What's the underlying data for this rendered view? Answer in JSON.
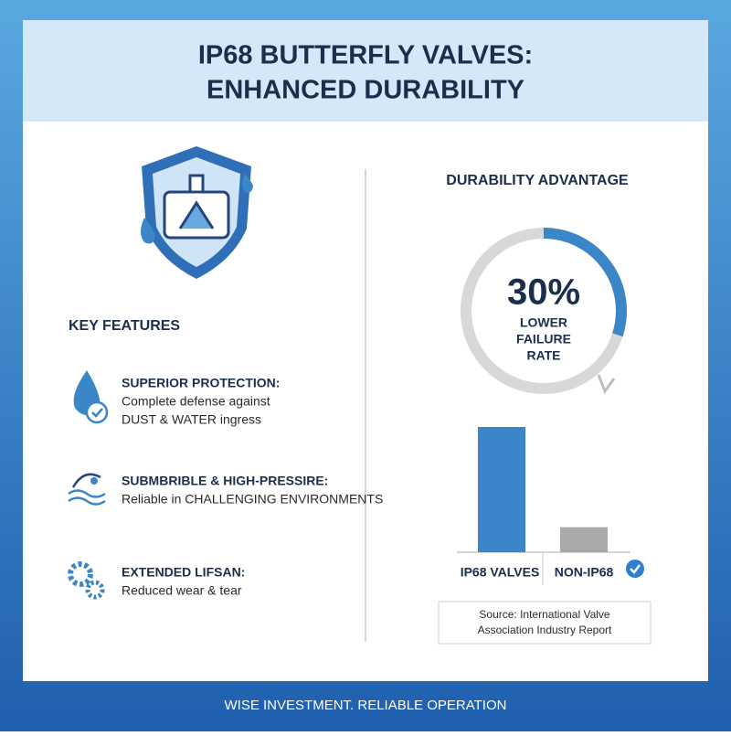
{
  "header": {
    "title": [
      "IP68 BUTTERFLY VALVES:",
      "ENHANCED DURABILITY"
    ]
  },
  "features": {
    "heading": "KEY FEATURES",
    "items": [
      {
        "title": "SUPERIOR PROTECTION:",
        "lines": [
          "Complete defense against",
          "DUST & WATER ingress"
        ]
      },
      {
        "title": "SUBMBRIBLE & HIGH-PRESSIRE:",
        "lines": [
          "Reliable in CHALLENGING ENVIRONMENTS"
        ]
      },
      {
        "title": "EXTENDED LIFSAN:",
        "lines": [
          "Reduced wear & tear"
        ]
      }
    ]
  },
  "highlight": {
    "value": 30,
    "label": "30%",
    "caption": [
      "LOWER",
      "FAILURE",
      "RATE"
    ],
    "color": "#3a86c8"
  },
  "chart_data": {
    "type": "bar",
    "title": "DURABILITY ADVANTAGE",
    "categories": [
      "IP68 VALVES",
      "NON-IP68"
    ],
    "values": [
      100,
      20
    ],
    "colors": [
      "#3a86c8",
      "#a9a9a9"
    ]
  },
  "source": [
    "Source: International Valve",
    "Association Industry Report"
  ],
  "footer": "WISE INVESTMENT. RELIABLE OPERATION"
}
